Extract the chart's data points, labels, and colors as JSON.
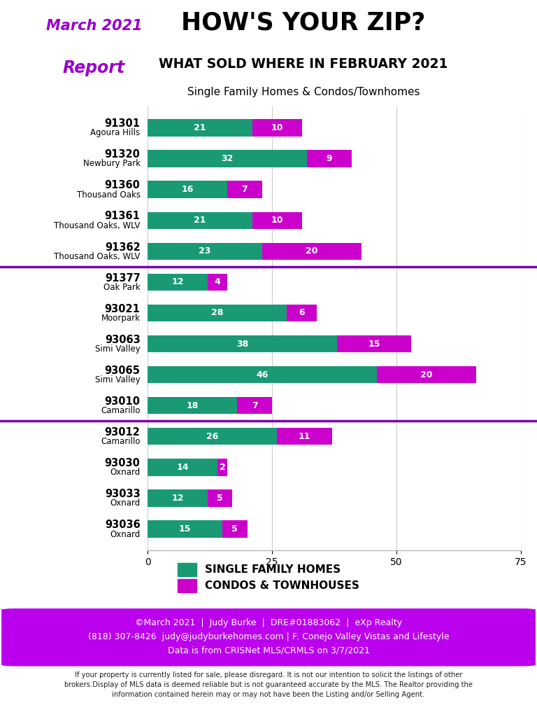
{
  "title1": "HOW'S YOUR ZIP?",
  "title2": "WHAT SOLD WHERE IN FEBRUARY 2021",
  "subtitle": "Single Family Homes & Condos/Townhomes",
  "march_label": "March 2021",
  "report_label": "Report",
  "zip_codes": [
    "91301",
    "91320",
    "91360",
    "91361",
    "91362",
    "91377",
    "93021",
    "93063",
    "93065",
    "93010",
    "93012",
    "93030",
    "93033",
    "93036"
  ],
  "area_names": [
    "Agoura Hills",
    "Newbury Park",
    "Thousand Oaks",
    "Thousand Oaks, WLV",
    "Thousand Oaks, WLV",
    "Oak Park",
    "Moorpark",
    "Simi Valley",
    "Simi Valley",
    "Camarillo",
    "Camarillo",
    "Oxnard",
    "Oxnard",
    "Oxnard"
  ],
  "sfh": [
    21,
    32,
    16,
    21,
    23,
    12,
    28,
    38,
    46,
    18,
    26,
    14,
    12,
    15
  ],
  "condo": [
    10,
    9,
    7,
    10,
    20,
    4,
    6,
    15,
    20,
    7,
    11,
    2,
    5,
    5
  ],
  "sfh_color": "#1a9975",
  "condo_color": "#cc00cc",
  "divider_after": [
    5,
    10
  ],
  "divider_color": "#7700aa",
  "xlim": [
    0,
    75
  ],
  "xticks": [
    0,
    25,
    50,
    75
  ],
  "grid_color": "#cccccc",
  "bar_height": 0.55,
  "footer_bg": "#bb00ee",
  "footer_text_color": "#ffffff",
  "footer_line1": "©March 2021  |  Judy Burke  |  DRE#01883062  |  eXp Realty",
  "footer_line2": "(818) 307-8426  judy@judyburkehomes.com | F: Conejo Valley Vistas and Lifestyle",
  "footer_line3": "Data is from CRISNet MLS/CRMLS on 3/7/2021",
  "disclaimer": "If your property is currently listed for sale, please disregard. It is not our intention to solicit the listings of other\nbrokers.Display of MLS data is deemed reliable but is not guaranteed accurate by the MLS. The Realtor providing the\ninformation contained herein may or may not have been the Listing and/or Selling Agent.",
  "legend_sfh": "SINGLE FAMILY HOMES",
  "legend_condo": "CONDOS & TOWNHOUSES",
  "march_color": "#9900cc",
  "report_color": "#9900cc",
  "bg_color": "#ffffff",
  "label_fontsize": 9,
  "value_fontsize": 9
}
